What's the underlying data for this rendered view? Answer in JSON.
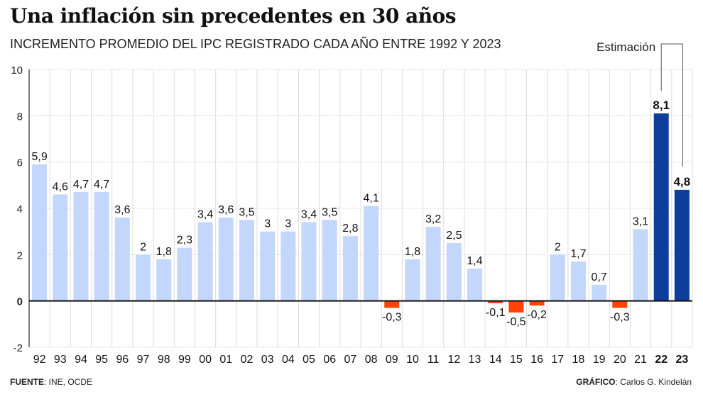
{
  "title": "Una inflación sin precedentes en 30 años",
  "subtitle": "INCREMENTO PROMEDIO DEL IPC REGISTRADO CADA AÑO ENTRE 1992 Y 2023",
  "footer": {
    "source_label": "FUENTE",
    "source_value": ": INE, OCDE",
    "credit_label": "GRÁFICO",
    "credit_value": ": Carlos G. Kindelán"
  },
  "colors": {
    "positive": "#c3d6fb",
    "negative": "#ff4400",
    "estimate": "#0d3f9a",
    "grid": "#dcdcdc",
    "axis": "#111111"
  },
  "chart_data": {
    "type": "bar",
    "title": "Una inflación sin precedentes en 30 años",
    "subtitle": "INCREMENTO PROMEDIO DEL IPC REGISTRADO CADA AÑO ENTRE 1992 Y 2023",
    "xlabel": "",
    "ylabel": "",
    "ylim": [
      -2,
      10
    ],
    "yticks": [
      10,
      8,
      6,
      4,
      2,
      0,
      -2
    ],
    "grid": true,
    "categories": [
      "92",
      "93",
      "94",
      "95",
      "96",
      "97",
      "98",
      "99",
      "00",
      "01",
      "02",
      "03",
      "04",
      "05",
      "06",
      "07",
      "08",
      "09",
      "10",
      "11",
      "12",
      "13",
      "14",
      "15",
      "16",
      "17",
      "18",
      "19",
      "20",
      "21",
      "22",
      "23"
    ],
    "values": [
      5.9,
      4.6,
      4.7,
      4.7,
      3.6,
      2,
      1.8,
      2.3,
      3.4,
      3.6,
      3.5,
      3,
      3,
      3.4,
      3.5,
      2.8,
      4.1,
      -0.3,
      1.8,
      3.2,
      2.5,
      1.4,
      -0.1,
      -0.5,
      -0.2,
      2,
      1.7,
      0.7,
      -0.3,
      3.1,
      8.1,
      4.8
    ],
    "labels": [
      "5,9",
      "4,6",
      "4,7",
      "4,7",
      "3,6",
      "2",
      "1,8",
      "2,3",
      "3,4",
      "3,6",
      "3,5",
      "3",
      "3",
      "3,4",
      "3,5",
      "2,8",
      "4,1",
      "-0,3",
      "1,8",
      "3,2",
      "2,5",
      "1,4",
      "-0,1",
      "-0,5",
      "-0,2",
      "2",
      "1,7",
      "0,7",
      "-0,3",
      "3,1",
      "8,1",
      "4,8"
    ],
    "estimated": [
      "22",
      "23"
    ],
    "annotation": "Estimación"
  }
}
